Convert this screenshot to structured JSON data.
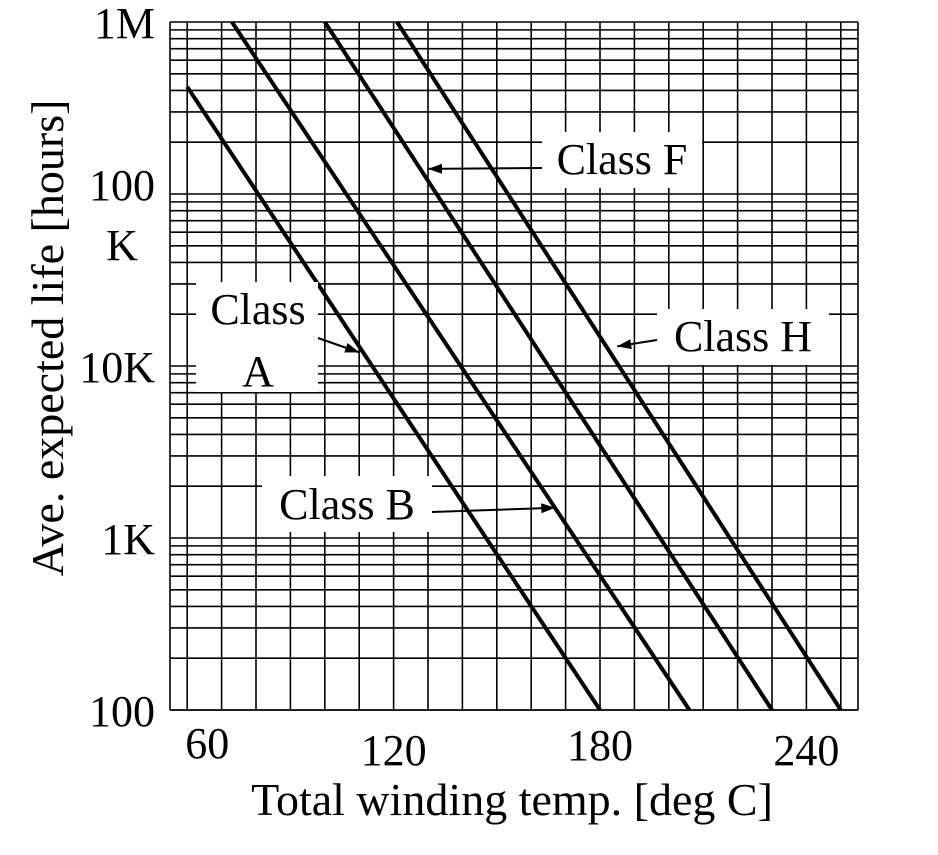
{
  "chart_data": {
    "type": "line",
    "xlabel": "Total winding temp. [deg C]",
    "ylabel": "Ave. expected life [hours]",
    "xlim": [
      55,
      255
    ],
    "ylim": [
      100,
      1000000
    ],
    "y_scale": "log",
    "grid": true,
    "x_ticks": [
      {
        "value": 60,
        "label": "60"
      },
      {
        "value": 120,
        "label": "120"
      },
      {
        "value": 180,
        "label": "180"
      },
      {
        "value": 240,
        "label": "240"
      }
    ],
    "y_ticks": [
      {
        "value": 100,
        "label": "100"
      },
      {
        "value": 1000,
        "label": "1K"
      },
      {
        "value": 10000,
        "label": "10K"
      },
      {
        "value": 100000,
        "label": "100\nK"
      },
      {
        "value": 1000000,
        "label": "1M"
      }
    ],
    "series": [
      {
        "name": "Class A",
        "x": [
          60,
          180
        ],
        "y": [
          420000,
          100
        ]
      },
      {
        "name": "Class B",
        "x": [
          73,
          206
        ],
        "y": [
          1000000,
          100
        ]
      },
      {
        "name": "Class F",
        "x": [
          100,
          230
        ],
        "y": [
          1000000,
          100
        ]
      },
      {
        "name": "Class H",
        "x": [
          121,
          250
        ],
        "y": [
          1000000,
          100
        ]
      }
    ],
    "annotations": [
      {
        "series": "Class A",
        "text": "Class\nA",
        "position": "left",
        "arrow_to": [
          110,
          12000
        ]
      },
      {
        "series": "Class B",
        "text": "Class B",
        "position": "bottom",
        "arrow_to": [
          167,
          1500
        ]
      },
      {
        "series": "Class F",
        "text": "Class F",
        "position": "top",
        "arrow_to": [
          130,
          140000
        ]
      },
      {
        "series": "Class H",
        "text": "Class H",
        "position": "right",
        "arrow_to": [
          185,
          13000
        ]
      }
    ],
    "colors": {
      "line": "#000000",
      "grid": "#000000",
      "background": "#ffffff"
    }
  }
}
